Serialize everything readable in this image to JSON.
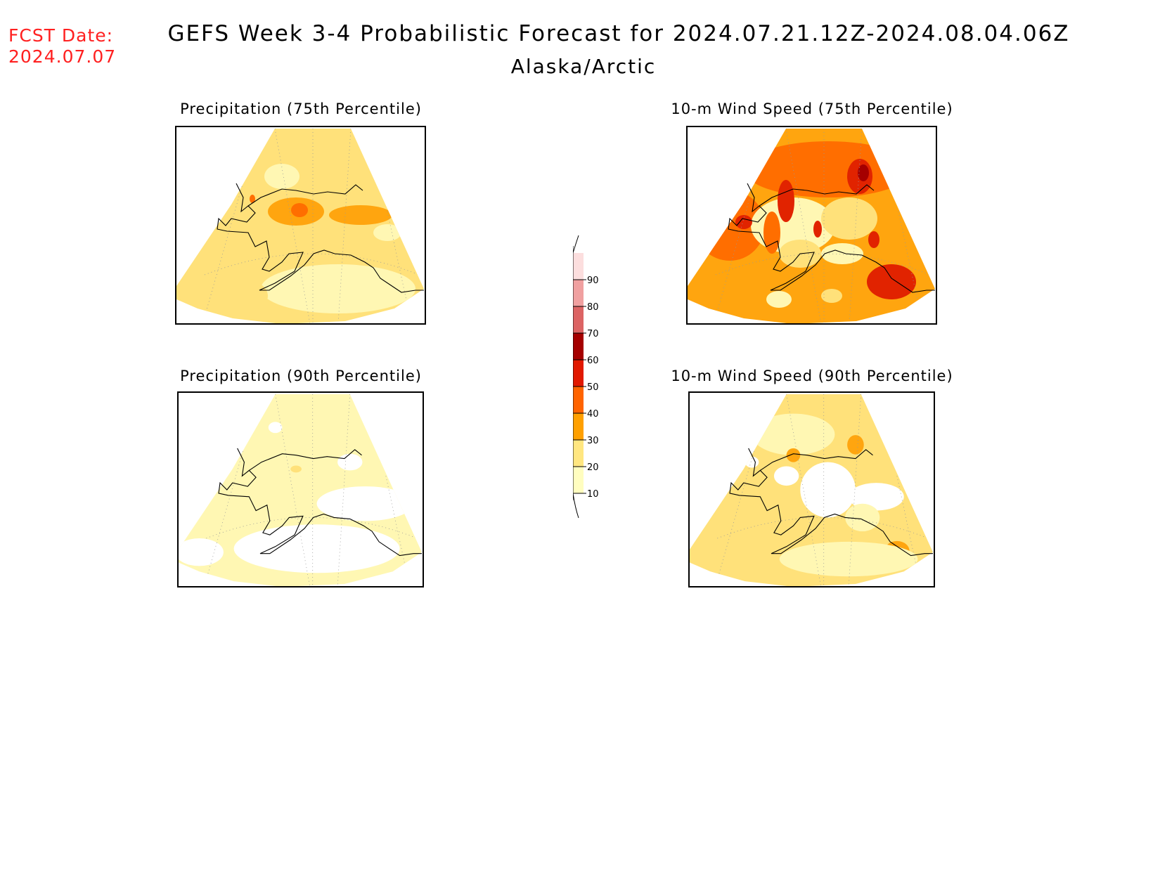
{
  "header": {
    "fcst_label": "FCST Date:",
    "fcst_value": "2024.07.07",
    "title": "GEFS Week 3-4 Probabilistic Forecast for 2024.07.21.12Z-2024.08.04.06Z",
    "subtitle": "Alaska/Arctic"
  },
  "panels": [
    {
      "id": "precip75",
      "title": "Precipitation (75th Percentile)"
    },
    {
      "id": "wind75",
      "title": "10-m Wind Speed (75th Percentile)"
    },
    {
      "id": "precip90",
      "title": "Precipitation (90th Percentile)"
    },
    {
      "id": "wind90",
      "title": "10-m Wind Speed (90th Percentile)"
    }
  ],
  "legend": {
    "levels": [
      "10",
      "20",
      "30",
      "40",
      "50",
      "60",
      "70",
      "80",
      "90"
    ],
    "colors": [
      "#fffdbf",
      "#ffe680",
      "#ffa000",
      "#ff6400",
      "#e11900",
      "#a50000",
      "#dc6464",
      "#f0a0a0",
      "#fcdede"
    ]
  },
  "palette": {
    "c10": "#fff7b3",
    "c20": "#ffe17a",
    "c30": "#ffa50f",
    "c40": "#ff6e00",
    "c50": "#e12300",
    "c60": "#a50000",
    "coast": "#000000"
  }
}
